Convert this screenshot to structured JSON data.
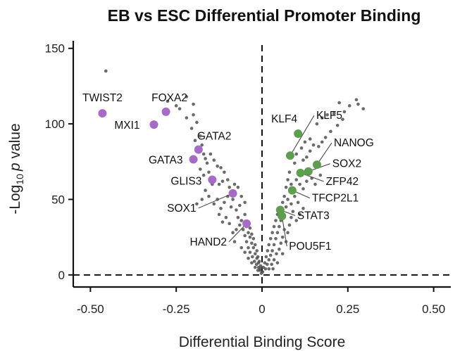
{
  "chart_data": {
    "type": "scatter",
    "title": "EB vs ESC Differential Promoter Binding",
    "xlabel": "Differential Binding Score",
    "ylabel_prefix": "-Log",
    "ylabel_sub": "10",
    "ylabel_italic": "p",
    "ylabel_suffix": " value",
    "xlim": [
      -0.55,
      0.55
    ],
    "ylim": [
      -8,
      155
    ],
    "xticks": [
      -0.5,
      -0.25,
      0,
      0.25,
      0.5
    ],
    "xtick_labels": [
      "-0.50",
      "-0.25",
      "0",
      "0.25",
      "0.50"
    ],
    "yticks": [
      0,
      50,
      100,
      150
    ],
    "ytick_labels": [
      "0",
      "50",
      "100",
      "150"
    ],
    "reference_lines": {
      "x": 0,
      "y": 0,
      "style": "dashed"
    },
    "colors": {
      "background_points": "#505050",
      "down": "#a66bc7",
      "up": "#5e9e4f"
    },
    "highlighted_down": [
      {
        "label": "TWIST2",
        "x": -0.465,
        "y": 107
      },
      {
        "label": "FOXA2",
        "x": -0.28,
        "y": 108
      },
      {
        "label": "MXI1",
        "x": -0.315,
        "y": 99.5
      },
      {
        "label": "GATA2",
        "x": -0.185,
        "y": 83
      },
      {
        "label": "GATA3",
        "x": -0.2,
        "y": 76.5
      },
      {
        "label": "GLIS3",
        "x": -0.145,
        "y": 63
      },
      {
        "label": "SOX1",
        "x": -0.085,
        "y": 54
      },
      {
        "label": "HAND2",
        "x": -0.045,
        "y": 34
      }
    ],
    "highlighted_up": [
      {
        "label": "KLF4",
        "x": 0.105,
        "y": 93.5
      },
      {
        "label": "KLF5",
        "x": 0.082,
        "y": 79
      },
      {
        "label": "NANOG",
        "x": 0.16,
        "y": 73
      },
      {
        "label": "SOX2",
        "x": 0.135,
        "y": 68.5
      },
      {
        "label": "ZFP42",
        "x": 0.112,
        "y": 67.5
      },
      {
        "label": "TFCP2L1",
        "x": 0.088,
        "y": 56
      },
      {
        "label": "STAT3",
        "x": 0.053,
        "y": 43
      },
      {
        "label": "POU5F1",
        "x": 0.058,
        "y": 39
      }
    ],
    "background_points": [
      [
        -0.455,
        135
      ],
      [
        -0.275,
        115
      ],
      [
        -0.25,
        112
      ],
      [
        -0.24,
        110
      ],
      [
        -0.22,
        118
      ],
      [
        -0.2,
        113
      ],
      [
        -0.2,
        106
      ],
      [
        -0.22,
        104
      ],
      [
        -0.205,
        97
      ],
      [
        -0.19,
        101
      ],
      [
        -0.18,
        92
      ],
      [
        -0.195,
        89
      ],
      [
        -0.175,
        86
      ],
      [
        -0.17,
        80
      ],
      [
        -0.165,
        77
      ],
      [
        -0.16,
        74
      ],
      [
        -0.15,
        80
      ],
      [
        -0.14,
        76
      ],
      [
        -0.13,
        72
      ],
      [
        -0.12,
        71
      ],
      [
        -0.11,
        68
      ],
      [
        -0.18,
        70
      ],
      [
        -0.17,
        66
      ],
      [
        -0.155,
        68
      ],
      [
        -0.145,
        60
      ],
      [
        -0.125,
        60
      ],
      [
        -0.115,
        62
      ],
      [
        -0.1,
        63
      ],
      [
        -0.095,
        58
      ],
      [
        -0.08,
        60
      ],
      [
        -0.07,
        58
      ],
      [
        -0.06,
        52
      ],
      [
        -0.05,
        48
      ],
      [
        -0.065,
        46
      ],
      [
        -0.075,
        43
      ],
      [
        -0.085,
        50
      ],
      [
        -0.09,
        45
      ],
      [
        -0.1,
        52
      ],
      [
        -0.11,
        48
      ],
      [
        -0.12,
        44
      ],
      [
        -0.13,
        50
      ],
      [
        -0.14,
        47
      ],
      [
        -0.155,
        52
      ],
      [
        -0.165,
        56
      ],
      [
        -0.175,
        50
      ],
      [
        -0.19,
        47
      ],
      [
        -0.07,
        38
      ],
      [
        -0.06,
        36
      ],
      [
        -0.05,
        40
      ],
      [
        -0.045,
        32
      ],
      [
        -0.04,
        28
      ],
      [
        -0.035,
        25
      ],
      [
        -0.03,
        21
      ],
      [
        -0.025,
        18
      ],
      [
        -0.02,
        14
      ],
      [
        -0.015,
        11
      ],
      [
        -0.01,
        8
      ],
      [
        -0.005,
        4
      ],
      [
        -0.002,
        1
      ],
      [
        -0.035,
        31
      ],
      [
        -0.03,
        27
      ],
      [
        -0.025,
        24
      ],
      [
        -0.02,
        20
      ],
      [
        -0.015,
        16
      ],
      [
        -0.012,
        12
      ],
      [
        -0.008,
        9
      ],
      [
        -0.004,
        6
      ],
      [
        -0.055,
        30
      ],
      [
        -0.05,
        26
      ],
      [
        -0.045,
        22
      ],
      [
        -0.04,
        18
      ],
      [
        -0.035,
        15
      ],
      [
        -0.028,
        12
      ],
      [
        -0.022,
        9
      ],
      [
        -0.016,
        7
      ],
      [
        -0.01,
        5
      ],
      [
        -0.006,
        3
      ],
      [
        -0.065,
        33
      ],
      [
        -0.075,
        30
      ],
      [
        -0.085,
        28
      ],
      [
        -0.095,
        34
      ],
      [
        -0.105,
        38
      ],
      [
        -0.115,
        35
      ],
      [
        -0.125,
        40
      ],
      [
        -0.08,
        22
      ],
      [
        -0.06,
        18
      ],
      [
        -0.05,
        15
      ],
      [
        -0.04,
        11
      ],
      [
        -0.03,
        8
      ],
      [
        -0.02,
        5
      ],
      [
        -0.012,
        3
      ],
      [
        0.225,
        114
      ],
      [
        0.275,
        116
      ],
      [
        0.28,
        113
      ],
      [
        0.295,
        110
      ],
      [
        0.255,
        112
      ],
      [
        0.24,
        108
      ],
      [
        0.21,
        107
      ],
      [
        0.19,
        106
      ],
      [
        0.175,
        104
      ],
      [
        0.16,
        100
      ],
      [
        0.235,
        103
      ],
      [
        0.22,
        99
      ],
      [
        0.2,
        95
      ],
      [
        0.185,
        91
      ],
      [
        0.175,
        88
      ],
      [
        0.165,
        85
      ],
      [
        0.15,
        86
      ],
      [
        0.14,
        82
      ],
      [
        0.13,
        78
      ],
      [
        0.12,
        76
      ],
      [
        0.14,
        90
      ],
      [
        0.125,
        88
      ],
      [
        0.115,
        84
      ],
      [
        0.1,
        80
      ],
      [
        0.095,
        74
      ],
      [
        0.08,
        68
      ],
      [
        0.075,
        63
      ],
      [
        0.07,
        58
      ],
      [
        0.085,
        60
      ],
      [
        0.1,
        63
      ],
      [
        0.11,
        60
      ],
      [
        0.12,
        57
      ],
      [
        0.13,
        62
      ],
      [
        0.145,
        64
      ],
      [
        0.155,
        60
      ],
      [
        0.17,
        66
      ],
      [
        0.065,
        52
      ],
      [
        0.06,
        48
      ],
      [
        0.07,
        45
      ],
      [
        0.075,
        50
      ],
      [
        0.085,
        47
      ],
      [
        0.095,
        52
      ],
      [
        0.105,
        48
      ],
      [
        0.05,
        44
      ],
      [
        0.045,
        40
      ],
      [
        0.04,
        36
      ],
      [
        0.035,
        32
      ],
      [
        0.03,
        28
      ],
      [
        0.025,
        24
      ],
      [
        0.02,
        20
      ],
      [
        0.016,
        16
      ],
      [
        0.012,
        12
      ],
      [
        0.008,
        8
      ],
      [
        0.004,
        5
      ],
      [
        0.002,
        2
      ],
      [
        0.055,
        36
      ],
      [
        0.05,
        32
      ],
      [
        0.045,
        28
      ],
      [
        0.04,
        24
      ],
      [
        0.035,
        20
      ],
      [
        0.03,
        16
      ],
      [
        0.025,
        13
      ],
      [
        0.02,
        10
      ],
      [
        0.015,
        7
      ],
      [
        0.01,
        4
      ],
      [
        0.065,
        30
      ],
      [
        0.06,
        25
      ],
      [
        0.055,
        21
      ],
      [
        0.05,
        17
      ],
      [
        0.042,
        14
      ],
      [
        0.035,
        10
      ],
      [
        0.028,
        7
      ],
      [
        0.02,
        4
      ],
      [
        0.085,
        38
      ],
      [
        0.08,
        33
      ],
      [
        0.075,
        28
      ],
      [
        0.09,
        42
      ],
      [
        0.1,
        36
      ],
      [
        0.11,
        40
      ],
      [
        0.12,
        44
      ],
      [
        0.07,
        22
      ],
      [
        0.06,
        14
      ],
      [
        0.045,
        8
      ],
      [
        0.032,
        4
      ]
    ]
  }
}
